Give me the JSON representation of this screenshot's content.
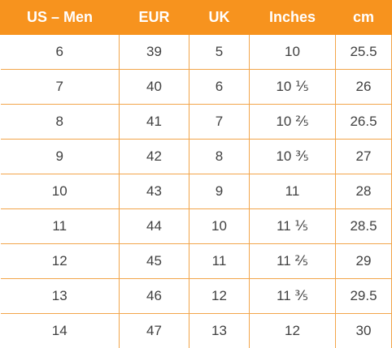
{
  "table": {
    "headers": [
      "US – Men",
      "EUR",
      "UK",
      "Inches",
      "cm"
    ],
    "rows": [
      [
        "6",
        "39",
        "5",
        "10",
        "25.5"
      ],
      [
        "7",
        "40",
        "6",
        "10 ⅕",
        "26"
      ],
      [
        "8",
        "41",
        "7",
        "10 ⅖",
        "26.5"
      ],
      [
        "9",
        "42",
        "8",
        "10 ⅗",
        "27"
      ],
      [
        "10",
        "43",
        "9",
        "11",
        "28"
      ],
      [
        "11",
        "44",
        "10",
        "11 ⅕",
        "28.5"
      ],
      [
        "12",
        "45",
        "11",
        "11 ⅖",
        "29"
      ],
      [
        "13",
        "46",
        "12",
        "11 ⅗",
        "29.5"
      ],
      [
        "14",
        "47",
        "13",
        "12",
        "30"
      ]
    ]
  },
  "colors": {
    "header_background": "#f7931e",
    "header_text": "#ffffff",
    "grid_lines": "#f2a54a",
    "cell_text": "#404040"
  }
}
